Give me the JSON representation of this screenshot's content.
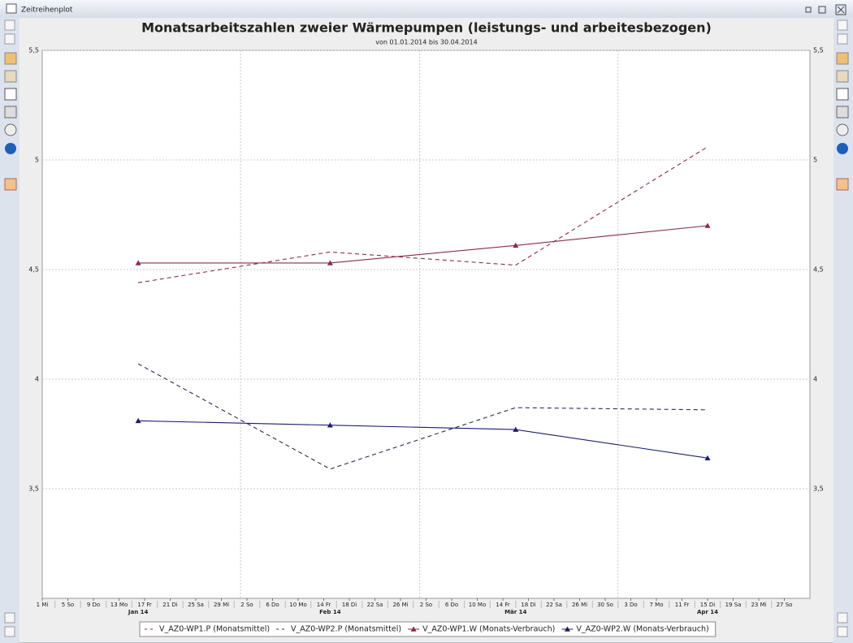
{
  "window": {
    "title": "Zeitreihenplot"
  },
  "chart_data": {
    "type": "line",
    "title": "Monatsarbeitszahlen zweier Wärmepumpen (leistungs- und arbeitesbezogen)",
    "subtitle": "von 01.01.2014 bis 30.04.2014",
    "x": [
      "2014-01-16",
      "2014-02-15",
      "2014-03-16",
      "2014-04-15"
    ],
    "xlim": [
      "2014-01-01",
      "2014-05-01"
    ],
    "xticks": [
      {
        "value": "2014-01-01",
        "label": "1 Mi"
      },
      {
        "value": "2014-01-05",
        "label": "5 So"
      },
      {
        "value": "2014-01-09",
        "label": "9 Do"
      },
      {
        "value": "2014-01-13",
        "label": "13 Mo"
      },
      {
        "value": "2014-01-17",
        "label": "17 Fr"
      },
      {
        "value": "2014-01-21",
        "label": "21 Di"
      },
      {
        "value": "2014-01-25",
        "label": "25 Sa"
      },
      {
        "value": "2014-01-29",
        "label": "29 Mi"
      },
      {
        "value": "2014-02-02",
        "label": "2 So"
      },
      {
        "value": "2014-02-06",
        "label": "6 Do"
      },
      {
        "value": "2014-02-10",
        "label": "10 Mo"
      },
      {
        "value": "2014-02-14",
        "label": "14 Fr"
      },
      {
        "value": "2014-02-18",
        "label": "18 Di"
      },
      {
        "value": "2014-02-22",
        "label": "22 Sa"
      },
      {
        "value": "2014-02-26",
        "label": "26 Mi"
      },
      {
        "value": "2014-03-02",
        "label": "2 So"
      },
      {
        "value": "2014-03-06",
        "label": "6 Do"
      },
      {
        "value": "2014-03-10",
        "label": "10 Mo"
      },
      {
        "value": "2014-03-14",
        "label": "14 Fr"
      },
      {
        "value": "2014-03-18",
        "label": "18 Di"
      },
      {
        "value": "2014-03-22",
        "label": "22 Sa"
      },
      {
        "value": "2014-03-26",
        "label": "26 Mi"
      },
      {
        "value": "2014-03-30",
        "label": "30 So"
      },
      {
        "value": "2014-04-03",
        "label": "3 Do"
      },
      {
        "value": "2014-04-07",
        "label": "7 Mo"
      },
      {
        "value": "2014-04-11",
        "label": "11 Fr"
      },
      {
        "value": "2014-04-15",
        "label": "15 Di"
      },
      {
        "value": "2014-04-19",
        "label": "19 Sa"
      },
      {
        "value": "2014-04-23",
        "label": "23 Mi"
      },
      {
        "value": "2014-04-27",
        "label": "27 So"
      }
    ],
    "month_ticks": [
      {
        "value": "2014-01-16",
        "label": "Jan 14"
      },
      {
        "value": "2014-02-15",
        "label": "Feb 14"
      },
      {
        "value": "2014-03-16",
        "label": "Mär 14"
      },
      {
        "value": "2014-04-15",
        "label": "Apr 14"
      }
    ],
    "ylim": [
      3,
      5.5
    ],
    "yticks": [
      {
        "value": 3.5,
        "label": "3,5"
      },
      4,
      {
        "value": 4.5,
        "label": "4,5"
      },
      5,
      {
        "value": 5.5,
        "label": "5,5"
      }
    ],
    "grid": true,
    "legend": "bottom",
    "series": [
      {
        "name": "V_AZ0-WP1.P (Monatsmittel)",
        "color": "#8b2a4a",
        "dashed": true,
        "marker": null,
        "values": [
          4.44,
          4.58,
          4.52,
          5.06
        ]
      },
      {
        "name": "V_AZ0-WP2.P (Monatsmittel)",
        "color": "#2a2a55",
        "dashed": true,
        "marker": null,
        "values": [
          4.07,
          3.59,
          3.87,
          3.86
        ]
      },
      {
        "name": "V_AZ0-WP1.W (Monats-Verbrauch)",
        "color": "#8b2a4a",
        "dashed": false,
        "marker": "triangle",
        "values": [
          4.53,
          4.53,
          4.61,
          4.7
        ]
      },
      {
        "name": "V_AZ0-WP2.W (Monats-Verbrauch)",
        "color": "#1c1c70",
        "dashed": false,
        "marker": "triangle",
        "values": [
          3.81,
          3.79,
          3.77,
          3.64
        ]
      }
    ]
  }
}
